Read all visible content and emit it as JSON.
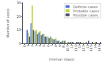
{
  "chart_data": {
    "type": "bar",
    "xlabel": "Interval (days)",
    "ylabel": "Number of cases",
    "categories": [
      "0",
      "1",
      "2",
      "3",
      "4",
      "5",
      "6",
      "7",
      "8",
      "9",
      "10",
      "10.5",
      "11",
      "11.5",
      "12",
      "12.5",
      "13",
      "13.5",
      "14",
      "14.5"
    ],
    "series": [
      {
        "name": "Definite cases",
        "values": [
          0,
          10,
          15,
          9,
          8,
          7,
          5,
          5,
          3,
          2,
          2,
          0,
          1,
          0,
          1,
          0,
          1,
          0,
          0,
          0
        ]
      },
      {
        "name": "Probable cases",
        "values": [
          0,
          8,
          28,
          10,
          9,
          7,
          5,
          4,
          4,
          2,
          2,
          1,
          1,
          0,
          1,
          1,
          0,
          0,
          1,
          0
        ]
      },
      {
        "name": "Possible cases",
        "values": [
          0,
          5,
          10,
          7,
          6,
          5,
          4,
          3,
          2,
          1,
          2,
          1,
          1,
          1,
          1,
          0,
          2,
          1,
          1,
          1
        ]
      }
    ],
    "ylim": [
      0,
      30
    ],
    "yticks": [
      0,
      10,
      20,
      30
    ],
    "grid": false,
    "legend": "upper right"
  }
}
